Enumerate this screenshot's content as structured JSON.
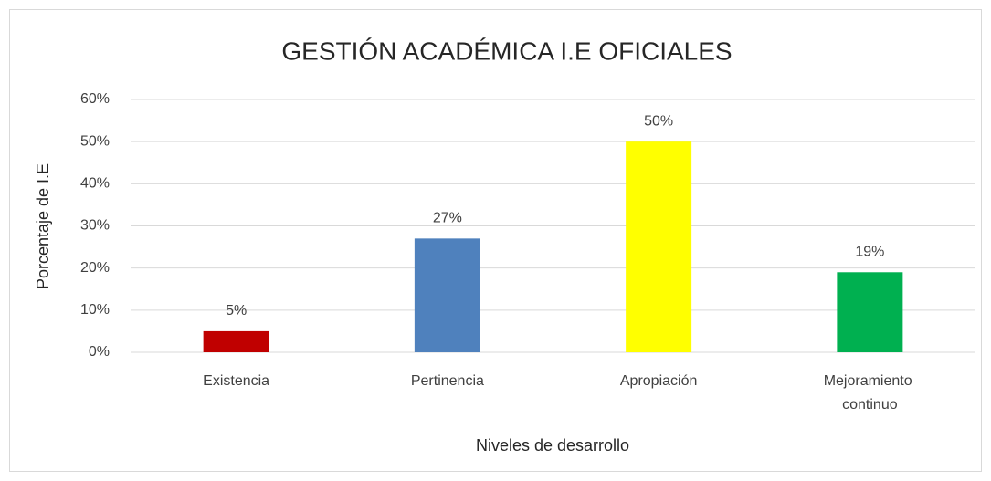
{
  "chart_data": {
    "type": "bar",
    "title": "GESTIÓN ACADÉMICA I.E OFICIALES",
    "x_label": "Niveles de desarrollo",
    "y_label": "Porcentaje de I.E",
    "categories": [
      "Existencia",
      "Pertinencia",
      "Apropiación",
      "Mejoramiento continuo"
    ],
    "values": [
      5,
      27,
      50,
      19
    ],
    "value_labels": [
      "5%",
      "27%",
      "50%",
      "19%"
    ],
    "colors": [
      "#c00000",
      "#4f81bd",
      "#ffff00",
      "#00b050"
    ],
    "ylim": [
      0,
      60
    ],
    "yticks": [
      {
        "value": 0,
        "label": "0%"
      },
      {
        "value": 10,
        "label": "10%"
      },
      {
        "value": 20,
        "label": "20%"
      },
      {
        "value": 30,
        "label": "30%"
      },
      {
        "value": 40,
        "label": "40%"
      },
      {
        "value": 50,
        "label": "50%"
      },
      {
        "value": 60,
        "label": "60%"
      }
    ],
    "grid": true
  }
}
